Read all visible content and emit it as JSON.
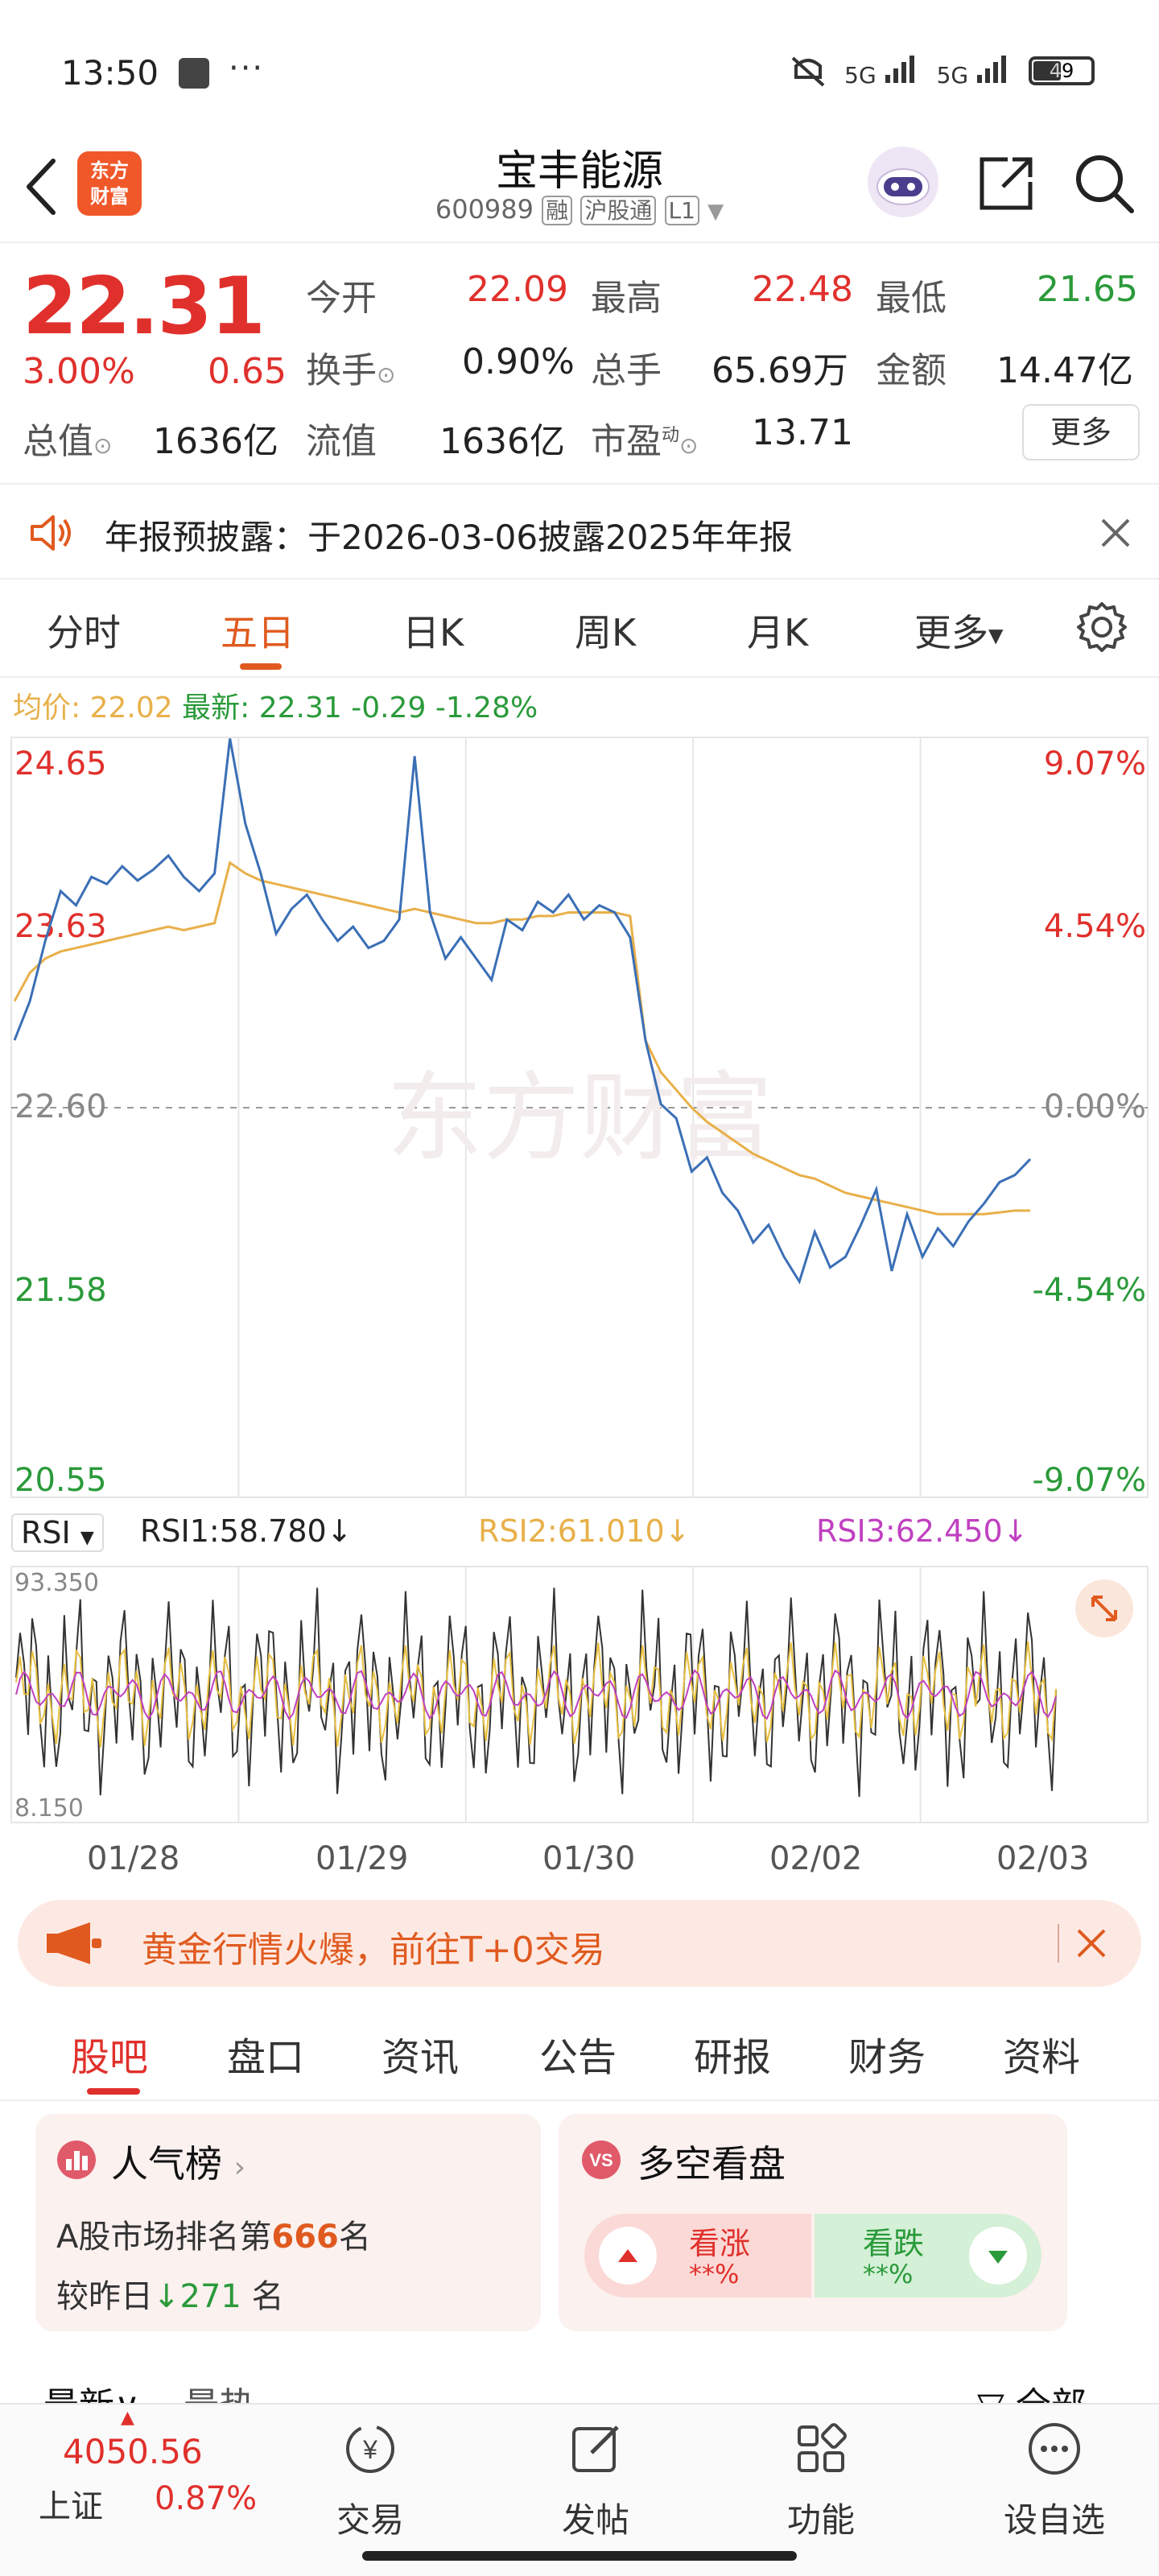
{
  "status_bar": {
    "time": "13:50",
    "signal1": "5G",
    "signal2": "5G",
    "battery": "49"
  },
  "header": {
    "logo_text": "东方财富",
    "title": "宝丰能源",
    "code": "600989",
    "tag_rong": "融",
    "tag_hugutong": "沪股通",
    "tag_level": "L1"
  },
  "quote": {
    "price": "22.31",
    "change_pct": "3.00%",
    "change_amt": "0.65",
    "open_label": "今开",
    "open": "22.09",
    "high_label": "最高",
    "high": "22.48",
    "low_label": "最低",
    "low": "21.65",
    "turnover_label": "换手",
    "turnover": "0.90%",
    "volume_label": "总手",
    "volume": "65.69万",
    "amount_label": "金额",
    "amount": "14.47亿",
    "mktcap_label": "总值",
    "mktcap": "1636亿",
    "float_label": "流值",
    "float_cap": "1636亿",
    "pe_label": "市盈",
    "pe_sup": "动",
    "pe": "13.71",
    "more_label": "更多"
  },
  "notice": {
    "text": "年报预披露：于2026-03-06披露2025年年报"
  },
  "kline_tabs": [
    "分时",
    "五日",
    "日K",
    "周K",
    "月K",
    "更多"
  ],
  "kline_active": 1,
  "chart_info": {
    "avg_label": "均价:",
    "avg": "22.02",
    "last_label": "最新:",
    "last": "22.31",
    "chg": "-0.29",
    "chg_pct": "-1.28%",
    "watermark": "东方财富"
  },
  "colors": {
    "up": "#e0302c",
    "down": "#2a9a3a",
    "price_line": "#3b6fb6",
    "avg_line": "#e8b04a",
    "accent": "#e05a1f"
  },
  "rsi": {
    "selector": "RSI",
    "rsi1": "RSI1:58.780",
    "rsi2": "RSI2:61.010",
    "rsi3": "RSI3:62.450",
    "ymax": "93.350",
    "ymin": "8.150"
  },
  "chart_data": {
    "type": "line",
    "days": [
      "01/28",
      "01/29",
      "01/30",
      "02/02",
      "02/03"
    ],
    "y_ticks_left": [
      "24.65",
      "23.63",
      "22.60",
      "21.58",
      "20.55"
    ],
    "y_ticks_right": [
      "9.07%",
      "4.54%",
      "0.00%",
      "-4.54%",
      "-9.07%"
    ],
    "ylim": [
      20.55,
      24.65
    ],
    "prev_close": 22.6,
    "series": [
      {
        "values": [
          22.98,
          23.2,
          23.54,
          23.82,
          23.74,
          23.9,
          23.86,
          23.96,
          23.88,
          23.94,
          24.02,
          23.9,
          23.82,
          23.92,
          24.68,
          24.2,
          23.92,
          23.58,
          23.72,
          23.8,
          23.66,
          23.54,
          23.62,
          23.5,
          23.54,
          23.66,
          24.58,
          23.7,
          23.44,
          23.56,
          23.44,
          23.32,
          23.66,
          23.6,
          23.76,
          23.7,
          23.8,
          23.66,
          23.74,
          23.7,
          23.56,
          22.98,
          22.62,
          22.54,
          22.24,
          22.32,
          22.12,
          22.02,
          21.84,
          21.94,
          21.76,
          21.62,
          21.9,
          21.7,
          21.76,
          21.94,
          22.14,
          21.68,
          22.0,
          21.76,
          21.92,
          21.82,
          21.96,
          22.06,
          22.18,
          22.22,
          22.31
        ]
      },
      {
        "values": [
          23.2,
          23.36,
          23.44,
          23.48,
          23.5,
          23.52,
          23.54,
          23.56,
          23.58,
          23.6,
          23.62,
          23.6,
          23.62,
          23.64,
          23.98,
          23.92,
          23.88,
          23.86,
          23.84,
          23.82,
          23.8,
          23.78,
          23.76,
          23.74,
          23.72,
          23.7,
          23.72,
          23.7,
          23.68,
          23.66,
          23.64,
          23.64,
          23.66,
          23.66,
          23.68,
          23.68,
          23.7,
          23.7,
          23.7,
          23.7,
          23.68,
          22.98,
          22.8,
          22.7,
          22.6,
          22.52,
          22.46,
          22.4,
          22.34,
          22.3,
          22.26,
          22.22,
          22.2,
          22.16,
          22.12,
          22.1,
          22.08,
          22.06,
          22.04,
          22.02,
          22.0,
          22.0,
          22.0,
          22.0,
          22.01,
          22.02,
          22.02
        ]
      }
    ]
  },
  "promo": {
    "text": "黄金行情火爆，前往T+0交易"
  },
  "news_tabs": [
    "股吧",
    "盘口",
    "资讯",
    "公告",
    "研报",
    "财务",
    "资料"
  ],
  "news_active": 0,
  "popularity_card": {
    "title": "人气榜",
    "rank_prefix": "A股市场排名第",
    "rank": "666",
    "rank_suffix": "名",
    "change_prefix": "较昨日",
    "change": "271",
    "change_suffix": "名"
  },
  "sentiment_card": {
    "badge": "VS",
    "title": "多空看盘",
    "up_label": "看涨",
    "up_value": "**%",
    "down_label": "看跌",
    "down_value": "**%"
  },
  "feed_partial": {
    "left1": "最新",
    "left2": "最热",
    "right": "全部"
  },
  "bottom_nav": {
    "index_value": "4050.56",
    "index_name": "上证",
    "index_chg": "0.87%",
    "items": [
      "交易",
      "发帖",
      "功能",
      "设自选"
    ]
  }
}
